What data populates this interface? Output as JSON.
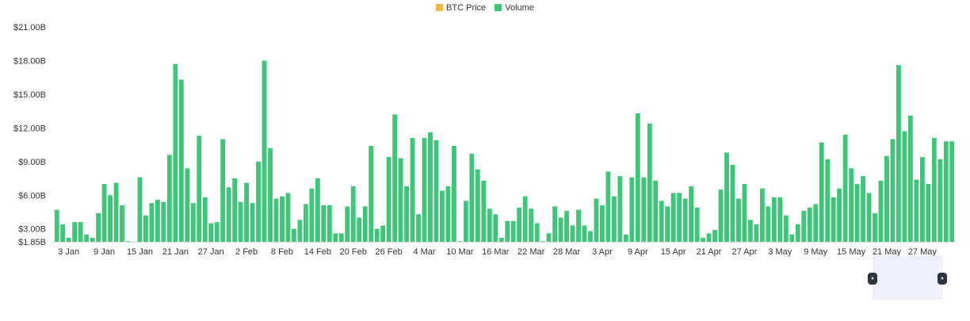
{
  "legend": [
    {
      "label": "BTC Price",
      "color": "#e9b949"
    },
    {
      "label": "Volume",
      "color": "#3ec57a"
    }
  ],
  "navigator": {
    "left_handle": "⏸",
    "right_handle": "⏸"
  },
  "chart_data": {
    "type": "bar",
    "title": "",
    "xlabel": "",
    "ylabel": "",
    "ylim": [
      1.85,
      21.0
    ],
    "y_ticks": [
      {
        "value": 1.85,
        "label": "$1.85B"
      },
      {
        "value": 3.0,
        "label": "$3.00B"
      },
      {
        "value": 6.0,
        "label": "$6.00B"
      },
      {
        "value": 9.0,
        "label": "$9.00B"
      },
      {
        "value": 12.0,
        "label": "$12.00B"
      },
      {
        "value": 15.0,
        "label": "$15.00B"
      },
      {
        "value": 18.0,
        "label": "$18.00B"
      },
      {
        "value": 21.0,
        "label": "$21.00B"
      }
    ],
    "x_ticks": [
      "3 Jan",
      "9 Jan",
      "15 Jan",
      "21 Jan",
      "27 Jan",
      "2 Feb",
      "8 Feb",
      "14 Feb",
      "20 Feb",
      "26 Feb",
      "4 Mar",
      "10 Mar",
      "16 Mar",
      "22 Mar",
      "28 Mar",
      "3 Apr",
      "9 Apr",
      "15 Apr",
      "21 Apr",
      "27 Apr",
      "3 May",
      "9 May",
      "15 May",
      "21 May",
      "27 May"
    ],
    "x_tick_day_index": [
      2,
      8,
      14,
      20,
      26,
      32,
      38,
      44,
      50,
      56,
      62,
      68,
      74,
      80,
      86,
      92,
      98,
      104,
      110,
      116,
      122,
      128,
      134,
      140,
      146
    ],
    "series": [
      {
        "name": "Volume",
        "color": "#3ec57a",
        "values": [
          4.7,
          3.4,
          2.2,
          3.6,
          3.6,
          2.5,
          2.2,
          4.4,
          7.0,
          6.0,
          7.1,
          5.1,
          1.9,
          1.8,
          7.6,
          4.2,
          5.3,
          5.6,
          5.4,
          9.6,
          17.7,
          16.3,
          8.4,
          5.3,
          11.3,
          5.8,
          3.5,
          3.6,
          11.0,
          6.7,
          7.5,
          5.4,
          7.1,
          5.3,
          9.0,
          18.0,
          10.2,
          5.7,
          5.9,
          6.2,
          3.0,
          3.8,
          5.2,
          6.6,
          7.5,
          5.1,
          5.1,
          2.6,
          2.6,
          5.0,
          6.8,
          4.0,
          5.0,
          10.4,
          3.0,
          3.3,
          9.4,
          13.2,
          9.3,
          6.8,
          11.1,
          4.3,
          11.1,
          11.6,
          10.9,
          6.4,
          6.8,
          10.4,
          1.9,
          5.5,
          9.7,
          8.3,
          7.3,
          4.8,
          4.3,
          2.2,
          3.7,
          3.7,
          4.9,
          5.9,
          4.8,
          3.5,
          1.9,
          2.6,
          5.0,
          4.0,
          4.6,
          3.3,
          4.7,
          3.3,
          2.8,
          5.7,
          5.1,
          8.1,
          5.9,
          7.7,
          2.5,
          7.6,
          13.3,
          7.6,
          12.4,
          7.3,
          5.5,
          5.0,
          6.2,
          6.2,
          5.7,
          6.8,
          4.9,
          2.2,
          2.6,
          2.9,
          6.5,
          9.8,
          8.7,
          5.7,
          7.0,
          3.8,
          3.4,
          6.6,
          5.0,
          5.8,
          5.8,
          4.2,
          2.5,
          3.4,
          4.6,
          4.9,
          5.2,
          10.7,
          9.2,
          5.8,
          6.6,
          11.4,
          8.4,
          7.0,
          7.7,
          6.2,
          4.4,
          7.3,
          9.5,
          11.0,
          17.6,
          11.7,
          13.1,
          7.4,
          9.4,
          7.0,
          11.1,
          9.2,
          10.8,
          10.8
        ]
      }
    ],
    "grid": false,
    "legend_position": "top-center"
  }
}
